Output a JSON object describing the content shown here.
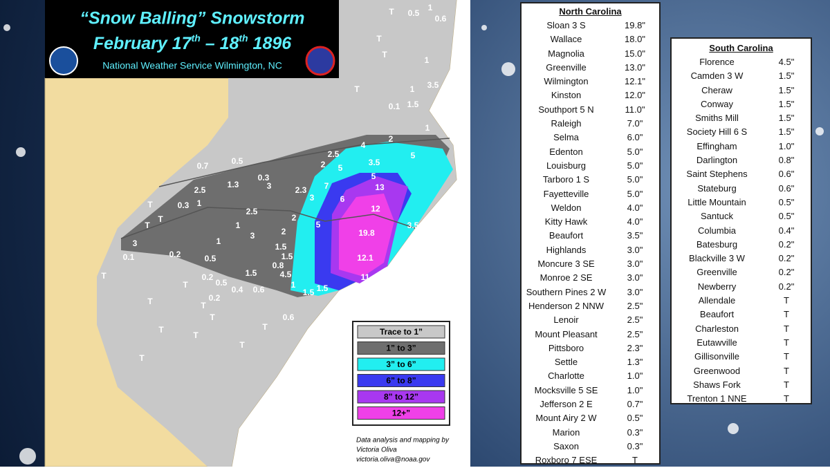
{
  "header": {
    "title": "“Snow Balling” Snowstorm",
    "date_parts": [
      "February 17",
      "th",
      " – 18",
      "th",
      " 1896"
    ],
    "office": "National Weather Service Wilmington, NC"
  },
  "legend": [
    {
      "label": "Trace to 1”",
      "color": "#c8c8c8"
    },
    {
      "label": "1” to 3”",
      "color": "#6e6e6e"
    },
    {
      "label": "3” to 6”",
      "color": "#22eef0"
    },
    {
      "label": "6” to 8”",
      "color": "#3a3af0"
    },
    {
      "label": "8” to 12”",
      "color": "#a838f0"
    },
    {
      "label": "12+”",
      "color": "#f040e8"
    }
  ],
  "credit": [
    "Data analysis and mapping by",
    "Victoria Oliva",
    "victoria.oliva@noaa.gov"
  ],
  "map_labels": [
    "T",
    "0.5",
    "1",
    "0.6",
    "T",
    "T",
    "1",
    "3.5",
    "T",
    "1",
    "0.1",
    "1.5",
    "1",
    "2",
    "2.5",
    "4",
    "2",
    "5",
    "3.5",
    "5",
    "5",
    "13",
    "7",
    "6",
    "12",
    "0.7",
    "0.5",
    "1.3",
    "0.3",
    "3",
    "2.3",
    "3",
    "2.5",
    "1",
    "0.3",
    "T",
    "T",
    "T",
    "2.5",
    "2",
    "5",
    "19.8",
    "3.5",
    "1",
    "3",
    "2",
    "1",
    "3",
    "0.1",
    "0.2",
    "0.5",
    "1.5",
    "1.5",
    "12.1",
    "0.8",
    "4.5",
    "11",
    "1.5",
    "T",
    "0.2",
    "0.5",
    "0.4",
    "0.6",
    "1",
    "1.5",
    "1.5",
    "T",
    "0.2",
    "T",
    "T",
    "T",
    "0.6",
    "T",
    "T",
    "T",
    "T",
    "T"
  ],
  "nc_table": {
    "title": "North Carolina",
    "rows": [
      [
        "Sloan 3 S",
        "19.8\""
      ],
      [
        "Wallace",
        "18.0\""
      ],
      [
        "Magnolia",
        "15.0\""
      ],
      [
        "Greenville",
        "13.0\""
      ],
      [
        "Wilmington",
        "12.1\""
      ],
      [
        "Kinston",
        "12.0\""
      ],
      [
        "Southport 5 N",
        "11.0\""
      ],
      [
        "Raleigh",
        "7.0\""
      ],
      [
        "Selma",
        "6.0\""
      ],
      [
        "Edenton",
        "5.0\""
      ],
      [
        "Louisburg",
        "5.0\""
      ],
      [
        "Tarboro 1 S",
        "5.0\""
      ],
      [
        "Fayetteville",
        "5.0\""
      ],
      [
        "Weldon",
        "4.0\""
      ],
      [
        "Kitty Hawk",
        "4.0\""
      ],
      [
        "Beaufort",
        "3.5\""
      ],
      [
        "Highlands",
        "3.0\""
      ],
      [
        "Moncure 3 SE",
        "3.0\""
      ],
      [
        "Monroe 2 SE",
        "3.0\""
      ],
      [
        "Southern Pines 2 W",
        "3.0\""
      ],
      [
        "Henderson 2 NNW",
        "2.5\""
      ],
      [
        "Lenoir",
        "2.5\""
      ],
      [
        "Mount Pleasant",
        "2.5\""
      ],
      [
        "Pittsboro",
        "2.3\""
      ],
      [
        "Settle",
        "1.3\""
      ],
      [
        "Charlotte",
        "1.0\""
      ],
      [
        "Mocksville 5 SE",
        "1.0\""
      ],
      [
        "Jefferson 2 E",
        "0.7\""
      ],
      [
        "Mount Airy 2 W",
        "0.5\""
      ],
      [
        "Marion",
        "0.3\""
      ],
      [
        "Saxon",
        "0.3\""
      ],
      [
        "Roxboro 7 ESE",
        "T"
      ]
    ]
  },
  "sc_table": {
    "title": "South Carolina",
    "rows": [
      [
        "Florence",
        "4.5\""
      ],
      [
        "Camden 3 W",
        "1.5\""
      ],
      [
        "Cheraw",
        "1.5\""
      ],
      [
        "Conway",
        "1.5\""
      ],
      [
        "Smiths Mill",
        "1.5\""
      ],
      [
        "Society Hill 6 S",
        "1.5\""
      ],
      [
        "Effingham",
        "1.0\""
      ],
      [
        "Darlington",
        "0.8\""
      ],
      [
        "Saint Stephens",
        "0.6\""
      ],
      [
        "Stateburg",
        "0.6\""
      ],
      [
        "Little Mountain",
        "0.5\""
      ],
      [
        "Santuck",
        "0.5\""
      ],
      [
        "Columbia",
        "0.4\""
      ],
      [
        "Batesburg",
        "0.2\""
      ],
      [
        "Blackville 3 W",
        "0.2\""
      ],
      [
        "Greenville",
        "0.2\""
      ],
      [
        "Newberry",
        "0.2\""
      ],
      [
        "Allendale",
        "T"
      ],
      [
        "Beaufort",
        "T"
      ],
      [
        "Charleston",
        "T"
      ],
      [
        "Eutawville",
        "T"
      ],
      [
        "Gillisonville",
        "T"
      ],
      [
        "Greenwood",
        "T"
      ],
      [
        "Shaws Fork",
        "T"
      ],
      [
        "Trenton 1 NNE",
        "T"
      ]
    ]
  }
}
